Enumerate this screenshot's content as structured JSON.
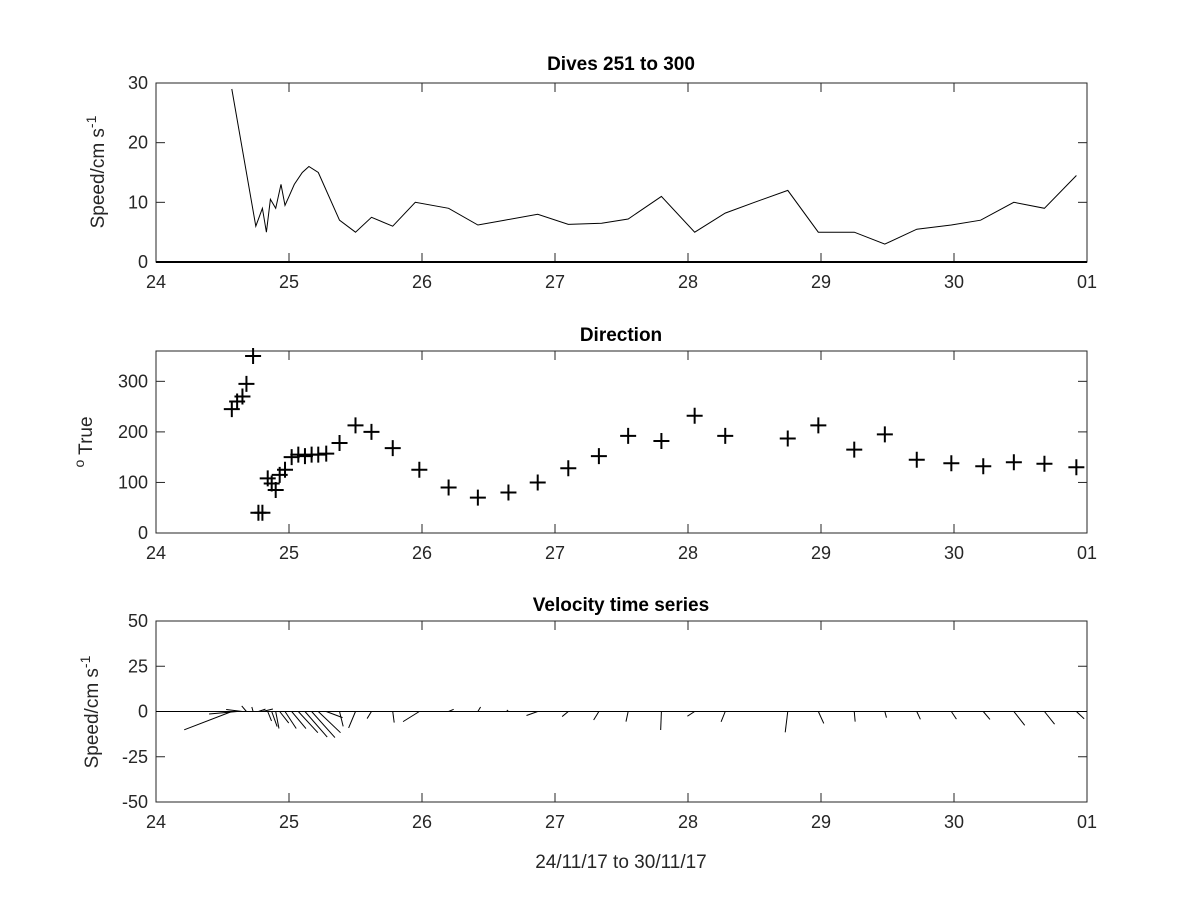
{
  "chart_data": [
    {
      "type": "line",
      "title": "Dives 251 to 300",
      "ylabel_main": "Speed/cm s",
      "ylabel_sup": "-1",
      "xlim": [
        24,
        31
      ],
      "ylim": [
        0,
        30
      ],
      "x_tick_labels": [
        "24",
        "25",
        "26",
        "27",
        "28",
        "29",
        "30",
        "01"
      ],
      "y_ticks": [
        0,
        10,
        20,
        30
      ],
      "series": [
        {
          "x": [
            24.57,
            24.75,
            24.8,
            24.83,
            24.86,
            24.9,
            24.94,
            24.97,
            25.0,
            25.04,
            25.1,
            25.15,
            25.22,
            25.38,
            25.5,
            25.62,
            25.78,
            25.95,
            26.2,
            26.42,
            26.62,
            26.87,
            27.1,
            27.35,
            27.55,
            27.8,
            28.05,
            28.28,
            28.5,
            28.75,
            28.98,
            29.25,
            29.48,
            29.72,
            29.98,
            30.2,
            30.45,
            30.68,
            30.92
          ],
          "y": [
            29.0,
            6.0,
            9.0,
            5.0,
            10.5,
            9.0,
            13.0,
            9.5,
            11.0,
            13.0,
            15.0,
            16.0,
            15.0,
            7.0,
            5.0,
            7.5,
            6.0,
            10.0,
            9.0,
            6.2,
            7.0,
            8.0,
            6.3,
            6.5,
            7.2,
            11.0,
            5.0,
            8.2,
            10.0,
            12.0,
            5.0,
            5.0,
            3.0,
            5.5,
            6.2,
            7.0,
            10.0,
            9.0,
            14.5
          ]
        }
      ]
    },
    {
      "type": "scatter",
      "title": "Direction",
      "ylabel_sup": "o",
      "ylabel_main": " True",
      "xlim": [
        24,
        31
      ],
      "ylim": [
        0,
        360
      ],
      "x_tick_labels": [
        "24",
        "25",
        "26",
        "27",
        "28",
        "29",
        "30",
        "01"
      ],
      "y_ticks": [
        0,
        100,
        200,
        300
      ],
      "series": [
        {
          "x": [
            24.57,
            24.61,
            24.65,
            24.68,
            24.73,
            24.77,
            24.8,
            24.84,
            24.87,
            24.9,
            24.93,
            24.97,
            25.02,
            25.07,
            25.12,
            25.17,
            25.22,
            25.28,
            25.38,
            25.5,
            25.62,
            25.78,
            25.98,
            26.2,
            26.42,
            26.65,
            26.87,
            27.1,
            27.33,
            27.55,
            27.8,
            28.05,
            28.28,
            28.75,
            28.98,
            29.25,
            29.48,
            29.72,
            29.98,
            30.22,
            30.45,
            30.68,
            30.92
          ],
          "y": [
            245,
            260,
            270,
            295,
            350,
            40,
            40,
            108,
            98,
            85,
            115,
            125,
            150,
            155,
            152,
            155,
            155,
            157,
            178,
            213,
            200,
            168,
            125,
            90,
            70,
            80,
            100,
            128,
            152,
            192,
            182,
            232,
            192,
            187,
            213,
            165,
            195,
            145,
            138,
            132,
            140,
            137,
            130
          ]
        }
      ]
    },
    {
      "type": "line",
      "subtype": "stick-plot",
      "title": "Velocity time series",
      "ylabel_main": "Speed/cm s",
      "ylabel_sup": "-1",
      "xlabel": "24/11/17 to 30/11/17",
      "xlim": [
        24,
        31
      ],
      "ylim": [
        -50,
        50
      ],
      "x_tick_labels": [
        "24",
        "25",
        "26",
        "27",
        "28",
        "29",
        "30",
        "01"
      ],
      "y_ticks": [
        50,
        25,
        0,
        -25,
        -50
      ],
      "series": [
        {
          "x": [
            24.57,
            24.61,
            24.65,
            24.68,
            24.73,
            24.77,
            24.8,
            24.84,
            24.87,
            24.9,
            24.93,
            24.97,
            25.02,
            25.07,
            25.12,
            25.17,
            25.22,
            25.28,
            25.38,
            25.5,
            25.62,
            25.78,
            25.98,
            26.2,
            26.42,
            26.65,
            26.87,
            27.1,
            27.33,
            27.55,
            27.8,
            28.05,
            28.28,
            28.75,
            28.98,
            29.25,
            29.48,
            29.72,
            29.98,
            30.22,
            30.45,
            30.68,
            30.92
          ],
          "u": [
            -26.3,
            -15.5,
            -9.0,
            -2.6,
            -0.7,
            3.9,
            5.8,
            2.1,
            3.0,
            1.8,
            5.0,
            6.2,
            7.9,
            10.8,
            12.3,
            12.9,
            12.3,
            9.0,
            2.0,
            -3.8,
            -2.4,
            0.8,
            -9.0,
            2.8,
            1.5,
            -0.9,
            -6.2,
            -3.4,
            -2.9,
            -1.2,
            -0.4,
            -4.0,
            -2.3,
            -1.4,
            3.0,
            0.5,
            0.9,
            2.0,
            2.8,
            3.7,
            6.0,
            5.6,
            4.3
          ],
          "v": [
            -10.1,
            -1.4,
            1.1,
            3.1,
            2.5,
            1.3,
            1.4,
            -5.2,
            -8.3,
            -9.4,
            -6.4,
            -9.4,
            -9.4,
            -11.7,
            -14.1,
            -14.4,
            -11.7,
            -3.4,
            -8.2,
            -9.1,
            -3.9,
            -6.1,
            -5.6,
            1.2,
            2.5,
            0.8,
            -2.2,
            -2.8,
            -4.7,
            -5.6,
            -10.2,
            -2.6,
            -5.7,
            -11.5,
            -6.6,
            -5.6,
            -3.4,
            -4.3,
            -4.2,
            -4.4,
            -7.6,
            -7.0,
            -4.0
          ]
        }
      ]
    }
  ]
}
